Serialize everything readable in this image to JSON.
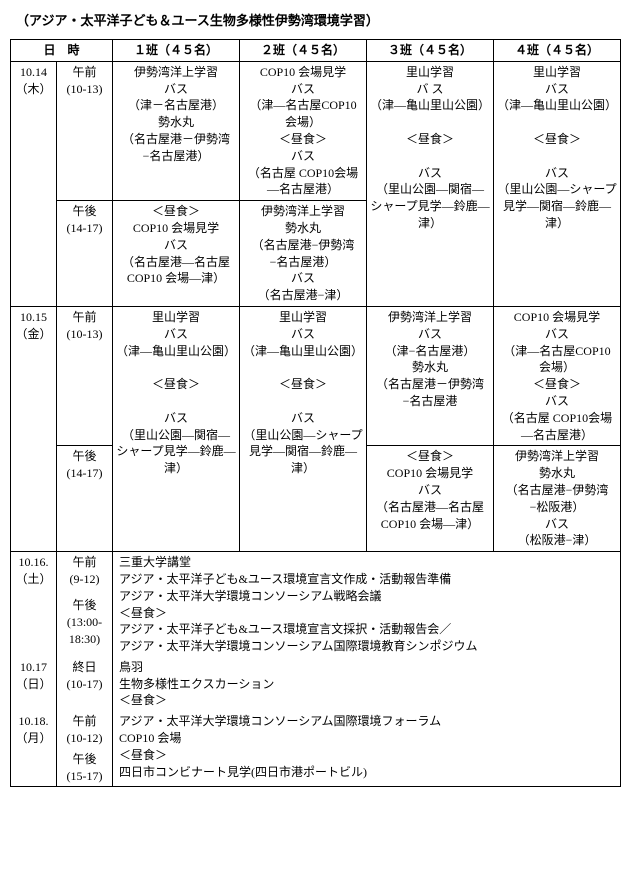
{
  "title": "（アジア・太平洋子ども＆ユース生物多様性伊勢湾環境学習）",
  "head": {
    "datetime": "日　時",
    "g1": "１班（４５名）",
    "g2": "２班（４５名）",
    "g3": "３班（４５名）",
    "g4": "４班（４５名）"
  },
  "d14": {
    "date": "10.14\n（木）",
    "am": "午前\n(10-13)",
    "pm": "午後\n(14-17)",
    "g1am": "伊勢湾洋上学習\nバス\n（津－名古屋港）\n勢水丸\n（名古屋港－伊勢湾−名古屋港）",
    "g2am": "COP10 会場見学\nバス\n（津―名古屋COP10 会場）\n＜昼食＞\nバス\n（名古屋 COP10会場―名古屋港）",
    "g3all": "里山学習\nバ ス\n（津―亀山里山公園）\n\n＜昼食＞\n\nバス\n（里山公園―関宿―シャープ見学―鈴鹿―津）",
    "g4all": "里山学習\nバス\n（津―亀山里山公園）\n\n＜昼食＞\n\nバス\n（里山公園―シャープ見学―関宿―鈴鹿―津）",
    "g1pm": "＜昼食＞\nCOP10 会場見学\nバス\n（名古屋港―名古屋 COP10 会場―津）",
    "g2pm": "伊勢湾洋上学習\n勢水丸\n（名古屋港−伊勢湾−名古屋港）\nバス\n（名古屋港−津）"
  },
  "d15": {
    "date": "10.15\n（金）",
    "am": "午前\n(10-13)",
    "pm": "午後\n(14-17)",
    "g1all": "里山学習\nバス\n（津―亀山里山公園）\n\n＜昼食＞\n\nバス\n（里山公園―関宿―シャープ見学―鈴鹿―津）",
    "g2all": "里山学習\nバス\n（津―亀山里山公園）\n\n＜昼食＞\n\nバス\n（里山公園―シャープ見学―関宿―鈴鹿―津）",
    "g3am": "伊勢湾洋上学習\nバス\n（津−名古屋港）\n勢水丸\n（名古屋港－伊勢湾−名古屋港",
    "g4am": "COP10 会場見学\nバス\n（津―名古屋COP10 会場）\n＜昼食＞\nバス\n（名古屋 COP10会場―名古屋港）",
    "g3pm": "＜昼食＞\nCOP10 会場見学\nバス\n（名古屋港―名古屋 COP10 会場―津）",
    "g4pm": "伊勢湾洋上学習\n勢水丸\n（名古屋港−伊勢湾−松阪港）\nバス\n（松阪港−津）"
  },
  "d16": {
    "date": "10.16.\n（土）",
    "am": "午前\n(9-12)",
    "pm": "午後\n(13:00-18:30)",
    "body": "三重大学講堂\nアジア・太平洋子ども&ユース環境宣言文作成・活動報告準備\nアジア・太平洋大学環境コンソーシアム戦略会議\n＜昼食＞\nアジア・太平洋子ども&ユース環境宣言文採択・活動報告会／\nアジア・太平洋大学環境コンソーシアム国際環境教育シンポジウム"
  },
  "d17": {
    "date": "10.17\n（日）",
    "time": "終日\n(10-17)",
    "body": "鳥羽\n生物多様性エクスカーション\n＜昼食＞"
  },
  "d18": {
    "date": "10.18.\n（月）",
    "am": "午前\n(10-12)",
    "pm": "午後\n(15-17)",
    "body": "アジア・太平洋大学環境コンソーシアム国際環境フォーラム\nCOP10 会場\n＜昼食＞\n四日市コンビナート見学(四日市港ポートビル)"
  }
}
